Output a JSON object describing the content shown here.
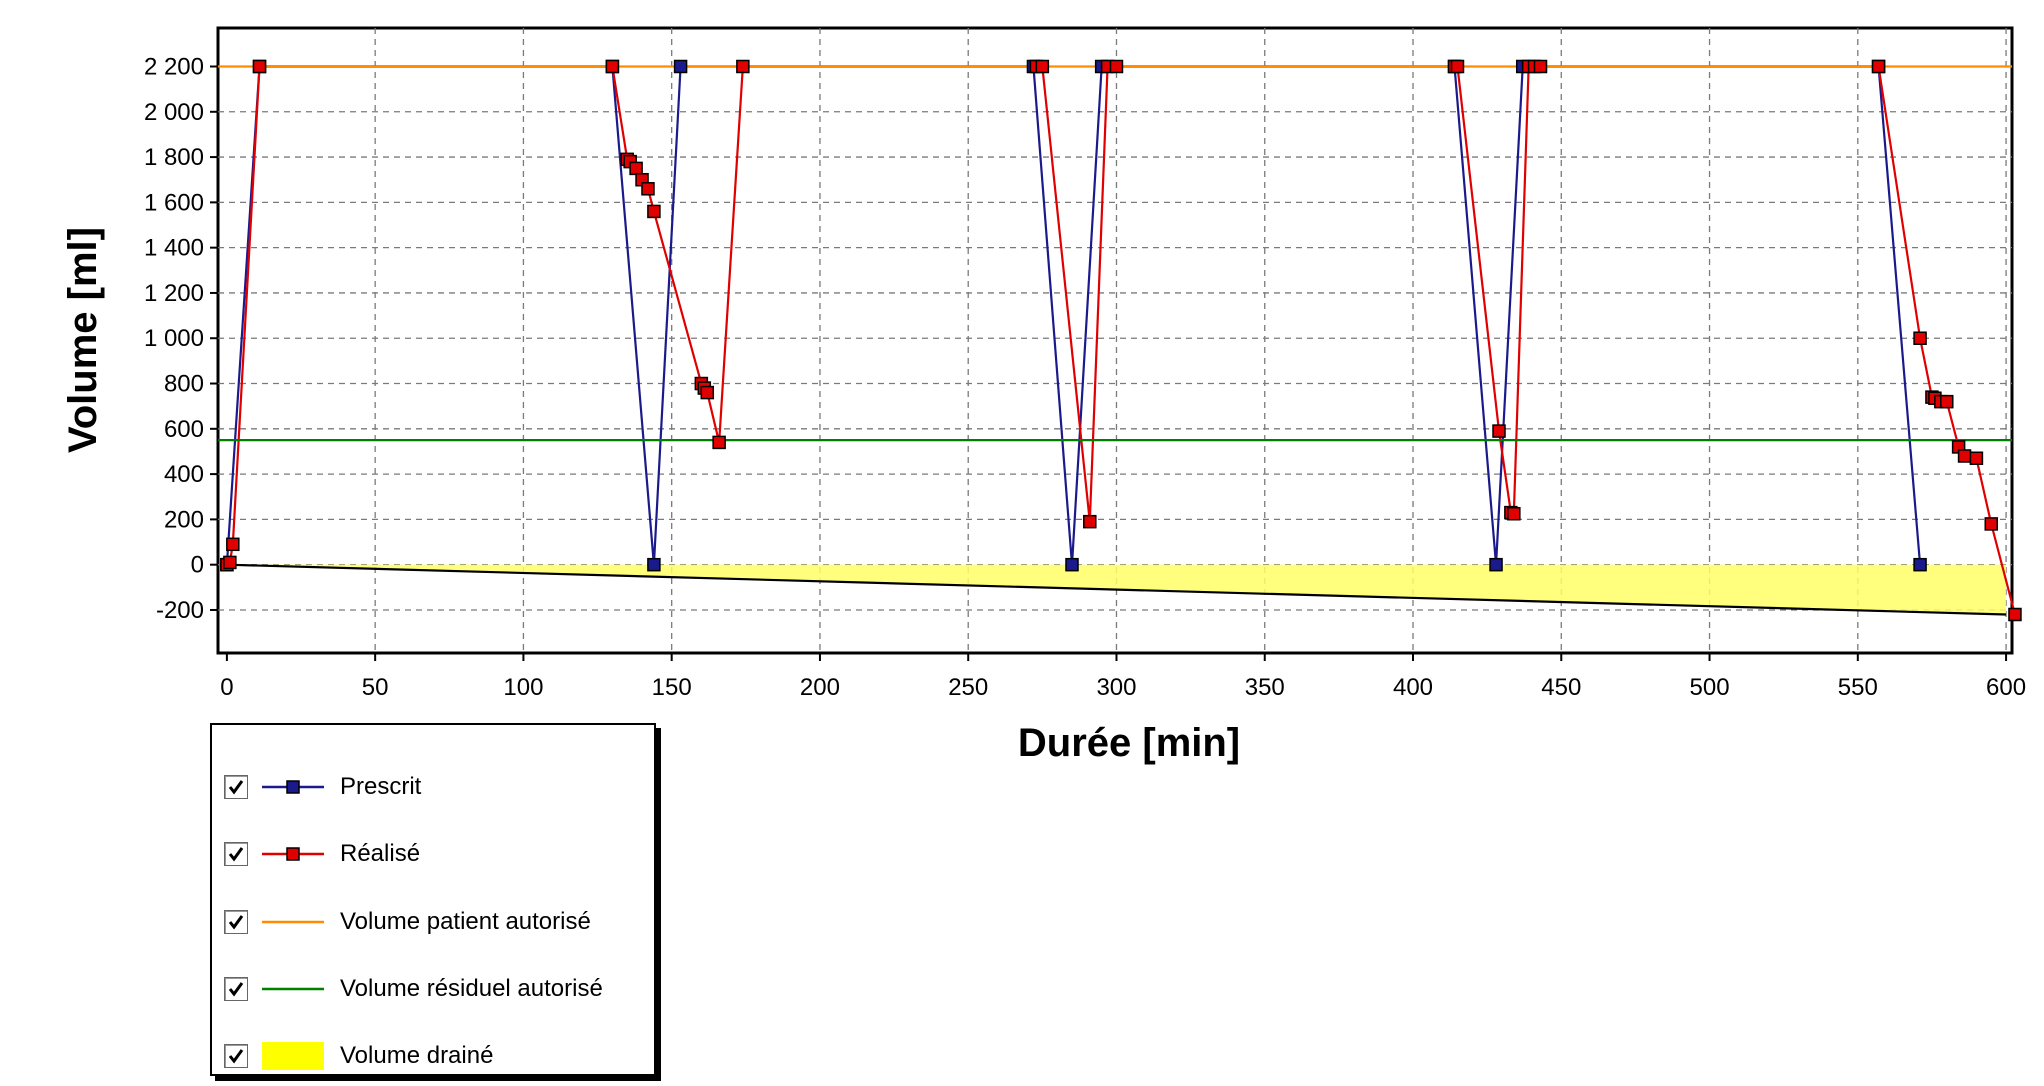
{
  "chart_data": {
    "type": "line",
    "xlabel": "Durée [min]",
    "ylabel": "Volume [ml]",
    "xlim": [
      -3,
      602
    ],
    "ylim": [
      -390,
      2370
    ],
    "xticks": [
      0,
      50,
      100,
      150,
      200,
      250,
      300,
      350,
      400,
      450,
      500,
      550,
      600
    ],
    "xtick_labels": [
      "0",
      "50",
      "100",
      "150",
      "200",
      "250",
      "300",
      "350",
      "400",
      "450",
      "500",
      "550",
      "600"
    ],
    "yticks": [
      -200,
      0,
      200,
      400,
      600,
      800,
      1000,
      1200,
      1400,
      1600,
      1800,
      2000,
      2200
    ],
    "ytick_labels": [
      "-200",
      "0",
      "200",
      "400",
      "600",
      "800",
      "1 000",
      "1 200",
      "1 400",
      "1 600",
      "1 800",
      "2 000",
      "2 200"
    ],
    "grid": true,
    "legend_position": "bottom-left",
    "series": [
      {
        "name": "Prescrit",
        "color": "#1a1a8c",
        "marker": "square",
        "x": [
          0,
          11,
          130,
          144,
          153,
          272,
          285,
          295,
          414,
          428,
          437,
          557,
          571
        ],
        "y": [
          0,
          2200,
          2200,
          0,
          2200,
          2200,
          0,
          2200,
          2200,
          0,
          2200,
          2200,
          0
        ]
      },
      {
        "name": "Réalisé",
        "color": "#e00000",
        "marker": "square",
        "x": [
          0,
          1,
          2,
          11,
          130,
          135,
          136,
          138,
          140,
          142,
          144,
          160,
          161,
          162,
          166,
          174,
          273,
          275,
          291,
          297,
          300,
          414,
          415,
          429,
          433,
          434,
          439,
          441,
          443,
          557,
          571,
          575,
          576,
          578,
          580,
          584,
          586,
          590,
          595,
          603
        ],
        "y": [
          0,
          10,
          90,
          2200,
          2200,
          1790,
          1780,
          1750,
          1700,
          1660,
          1560,
          800,
          780,
          760,
          540,
          2200,
          2200,
          2200,
          190,
          2200,
          2200,
          2200,
          2200,
          590,
          230,
          225,
          2200,
          2200,
          2200,
          2200,
          1000,
          740,
          735,
          720,
          720,
          520,
          480,
          470,
          180,
          -220
        ]
      },
      {
        "name": "Volume patient autorisé",
        "color": "#ff8c00",
        "x": [
          -3,
          602
        ],
        "y": [
          2200,
          2200
        ]
      },
      {
        "name": "Volume résiduel autorisé",
        "color": "#008000",
        "x": [
          -3,
          602
        ],
        "y": [
          550,
          550
        ]
      },
      {
        "name": "Volume drainé",
        "type": "area",
        "color": "#ffff66",
        "x": [
          0,
          600
        ],
        "y": [
          0,
          -220
        ]
      }
    ]
  },
  "legend": {
    "items": [
      {
        "label": "Prescrit",
        "checked": true
      },
      {
        "label": "Réalisé",
        "checked": true
      },
      {
        "label": "Volume patient autorisé",
        "checked": true
      },
      {
        "label": "Volume résiduel autorisé",
        "checked": true
      },
      {
        "label": "Volume drainé",
        "checked": true
      }
    ]
  }
}
